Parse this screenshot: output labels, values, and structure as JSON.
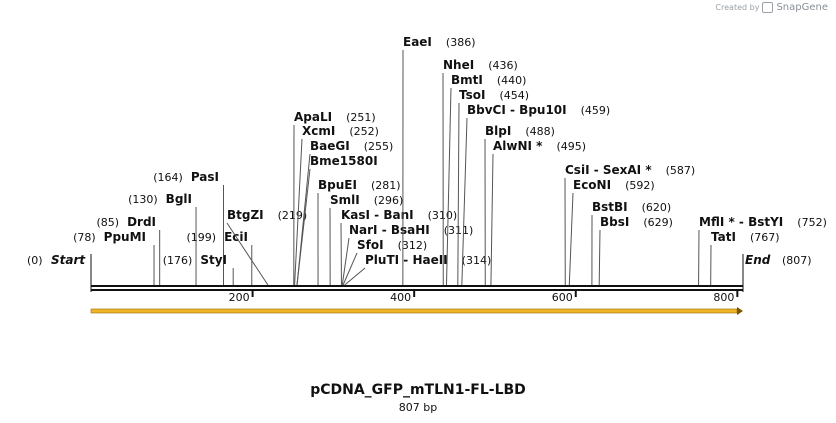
{
  "credit": {
    "text": "Created by",
    "brand": "SnapGene"
  },
  "map": {
    "title": "pCDNA_GFP_mTLN1-FL-LBD",
    "length_label": "807 bp",
    "length": 807,
    "start_label": "Start",
    "start_pos": "(0)",
    "end_label": "End",
    "end_pos": "(807)",
    "ticks": [
      "200",
      "400",
      "600",
      "800"
    ],
    "tick_values": [
      200,
      400,
      600,
      800
    ],
    "feature": {
      "color": "#f0b429",
      "direction": "forward"
    },
    "sites": [
      {
        "name": "PpuMI",
        "pos": "(78)",
        "bp": 78,
        "side": "left"
      },
      {
        "name": "DrdI",
        "pos": "(85)",
        "bp": 85,
        "side": "left"
      },
      {
        "name": "BglI",
        "pos": "(130)",
        "bp": 130,
        "side": "left"
      },
      {
        "name": "PasI",
        "pos": "(164)",
        "bp": 164,
        "side": "left"
      },
      {
        "name": "StyI",
        "pos": "(176)",
        "bp": 176,
        "side": "left"
      },
      {
        "name": "EciI",
        "pos": "(199)",
        "bp": 199,
        "side": "left"
      },
      {
        "name": "BtgZI",
        "pos": "(219)",
        "bp": 219,
        "side": "left"
      },
      {
        "name": "ApaLI",
        "pos": "(251)",
        "bp": 251,
        "side": "right"
      },
      {
        "name": "XcmI",
        "pos": "(252)",
        "bp": 252,
        "side": "right"
      },
      {
        "name": "BaeGI",
        "pos": "(255)",
        "bp": 255,
        "side": "right"
      },
      {
        "name": "Bme1580I",
        "pos": "",
        "bp": 255,
        "side": "right"
      },
      {
        "name": "BpuEI",
        "pos": "(281)",
        "bp": 281,
        "side": "right"
      },
      {
        "name": "SmlI",
        "pos": "(296)",
        "bp": 296,
        "side": "right"
      },
      {
        "name": "KasI - BanI",
        "pos": "(310)",
        "bp": 310,
        "side": "right"
      },
      {
        "name": "NarI - BsaHI",
        "pos": "(311)",
        "bp": 311,
        "side": "right"
      },
      {
        "name": "SfoI",
        "pos": "(312)",
        "bp": 312,
        "side": "right"
      },
      {
        "name": "PluTI - HaeII",
        "pos": "(314)",
        "bp": 314,
        "side": "right"
      },
      {
        "name": "EaeI",
        "pos": "(386)",
        "bp": 386,
        "side": "right"
      },
      {
        "name": "NheI",
        "pos": "(436)",
        "bp": 436,
        "side": "right"
      },
      {
        "name": "BmtI",
        "pos": "(440)",
        "bp": 440,
        "side": "right"
      },
      {
        "name": "TsoI",
        "pos": "(454)",
        "bp": 454,
        "side": "right"
      },
      {
        "name": "BbvCI - Bpu10I",
        "pos": "(459)",
        "bp": 459,
        "side": "right"
      },
      {
        "name": "BlpI",
        "pos": "(488)",
        "bp": 488,
        "side": "right"
      },
      {
        "name": "AlwNI *",
        "pos": "(495)",
        "bp": 495,
        "side": "right"
      },
      {
        "name": "CsiI - SexAI *",
        "pos": "(587)",
        "bp": 587,
        "side": "right"
      },
      {
        "name": "EcoNI",
        "pos": "(592)",
        "bp": 592,
        "side": "right"
      },
      {
        "name": "BstBI",
        "pos": "(620)",
        "bp": 620,
        "side": "right"
      },
      {
        "name": "BbsI",
        "pos": "(629)",
        "bp": 629,
        "side": "right"
      },
      {
        "name": "MflI * - BstYI",
        "pos": "(752)",
        "bp": 752,
        "side": "right"
      },
      {
        "name": "TatI",
        "pos": "(767)",
        "bp": 767,
        "side": "right"
      }
    ]
  }
}
